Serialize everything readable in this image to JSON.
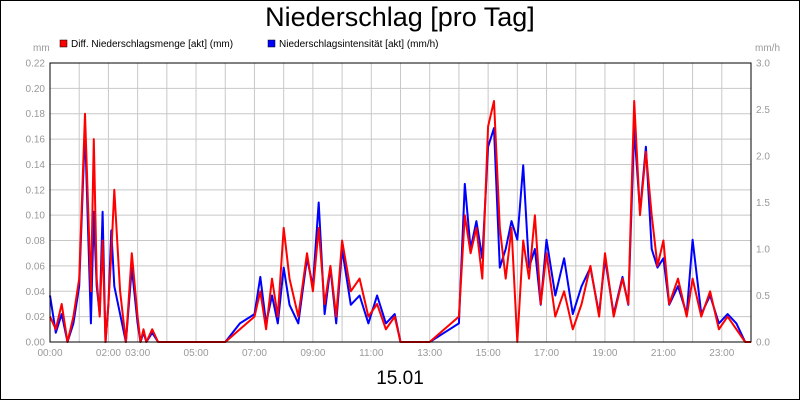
{
  "chart_data": {
    "type": "line",
    "title": "Niederschlag [pro Tag]",
    "xlabel": "15.01",
    "y_left_unit": "mm",
    "y_right_unit": "mm/h",
    "ylim_left": [
      0,
      0.22
    ],
    "ylim_right": [
      0,
      3.0
    ],
    "xlim_hours": [
      0,
      24
    ],
    "grid": true,
    "legend_placement": "top-left",
    "x_ticks": [
      "00:00",
      "02:00",
      "03:00",
      "05:00",
      "07:00",
      "09:00",
      "11:00",
      "13:00",
      "15:00",
      "17:00",
      "19:00",
      "21:00",
      "23:00"
    ],
    "x_tick_hours": [
      0,
      2,
      3,
      5,
      7,
      9,
      11,
      13,
      15,
      17,
      19,
      21,
      23
    ],
    "y_left_ticks": [
      "0.00",
      "0.02",
      "0.04",
      "0.06",
      "0.08",
      "0.10",
      "0.12",
      "0.14",
      "0.16",
      "0.18",
      "0.20",
      "0.22"
    ],
    "y_right_ticks": [
      "0.0",
      "0.5",
      "1.0",
      "1.5",
      "2.0",
      "2.5",
      "3.0"
    ],
    "series": [
      {
        "name": "Diff. Niederschlagsmenge [akt] (mm)",
        "color": "#ff0000",
        "axis": "left",
        "x": [
          0,
          0.2,
          0.4,
          0.6,
          0.8,
          1.0,
          1.2,
          1.4,
          1.5,
          1.6,
          1.7,
          1.8,
          1.9,
          2.0,
          2.1,
          2.2,
          2.4,
          2.6,
          2.8,
          3.0,
          3.1,
          3.2,
          3.3,
          3.5,
          3.7,
          4.0,
          5.0,
          6.0,
          6.5,
          7.0,
          7.2,
          7.4,
          7.6,
          7.8,
          8.0,
          8.2,
          8.5,
          8.8,
          9.0,
          9.2,
          9.4,
          9.6,
          9.8,
          10.0,
          10.3,
          10.6,
          10.9,
          11.2,
          11.5,
          11.8,
          12.0,
          12.5,
          13.0,
          13.5,
          14.0,
          14.2,
          14.4,
          14.6,
          14.8,
          15.0,
          15.2,
          15.4,
          15.6,
          15.8,
          16.0,
          16.2,
          16.4,
          16.6,
          16.8,
          17.0,
          17.3,
          17.6,
          17.9,
          18.2,
          18.5,
          18.8,
          19.0,
          19.3,
          19.6,
          19.8,
          20.0,
          20.2,
          20.4,
          20.6,
          20.8,
          21.0,
          21.2,
          21.5,
          21.8,
          22.0,
          22.3,
          22.6,
          22.9,
          23.2,
          23.5,
          23.8,
          24.0
        ],
        "values": [
          0.02,
          0.01,
          0.03,
          0.0,
          0.02,
          0.05,
          0.18,
          0.04,
          0.16,
          0.05,
          0.02,
          0.08,
          0.0,
          0.03,
          0.07,
          0.12,
          0.04,
          0.0,
          0.07,
          0.02,
          0.0,
          0.01,
          0.0,
          0.01,
          0.0,
          0.0,
          0.0,
          0.0,
          0.01,
          0.02,
          0.04,
          0.01,
          0.05,
          0.02,
          0.09,
          0.05,
          0.02,
          0.07,
          0.04,
          0.09,
          0.03,
          0.06,
          0.02,
          0.08,
          0.04,
          0.05,
          0.02,
          0.03,
          0.01,
          0.02,
          0.0,
          0.0,
          0.0,
          0.01,
          0.02,
          0.1,
          0.07,
          0.09,
          0.05,
          0.17,
          0.19,
          0.09,
          0.05,
          0.09,
          0.0,
          0.08,
          0.05,
          0.1,
          0.03,
          0.07,
          0.02,
          0.04,
          0.01,
          0.03,
          0.06,
          0.02,
          0.07,
          0.02,
          0.05,
          0.03,
          0.19,
          0.1,
          0.15,
          0.1,
          0.06,
          0.08,
          0.03,
          0.05,
          0.02,
          0.05,
          0.02,
          0.04,
          0.01,
          0.02,
          0.01,
          0.0,
          0.0
        ]
      },
      {
        "name": "Niederschlagsintensität [akt] (mm/h)",
        "color": "#0000ff",
        "axis": "right",
        "x": [
          0,
          0.2,
          0.4,
          0.6,
          0.8,
          1.0,
          1.2,
          1.4,
          1.5,
          1.6,
          1.7,
          1.8,
          1.9,
          2.0,
          2.1,
          2.2,
          2.4,
          2.6,
          2.8,
          3.0,
          3.1,
          3.2,
          3.3,
          3.5,
          3.7,
          4.0,
          5.0,
          6.0,
          6.5,
          7.0,
          7.2,
          7.4,
          7.6,
          7.8,
          8.0,
          8.2,
          8.5,
          8.8,
          9.0,
          9.2,
          9.4,
          9.6,
          9.8,
          10.0,
          10.3,
          10.6,
          10.9,
          11.2,
          11.5,
          11.8,
          12.0,
          12.5,
          13.0,
          13.5,
          14.0,
          14.2,
          14.4,
          14.6,
          14.8,
          15.0,
          15.2,
          15.4,
          15.6,
          15.8,
          16.0,
          16.2,
          16.4,
          16.6,
          16.8,
          17.0,
          17.3,
          17.6,
          17.9,
          18.2,
          18.5,
          18.8,
          19.0,
          19.3,
          19.6,
          19.8,
          20.0,
          20.2,
          20.4,
          20.6,
          20.8,
          21.0,
          21.2,
          21.5,
          21.8,
          22.0,
          22.3,
          22.6,
          22.9,
          23.2,
          23.5,
          23.8,
          24.0
        ],
        "values": [
          0.5,
          0.1,
          0.3,
          0.0,
          0.2,
          0.6,
          2.3,
          0.2,
          1.4,
          0.6,
          0.3,
          1.4,
          0.0,
          0.4,
          1.2,
          0.6,
          0.3,
          0.0,
          0.8,
          0.2,
          0.0,
          0.1,
          0.0,
          0.1,
          0.0,
          0.0,
          0.0,
          0.0,
          0.2,
          0.3,
          0.7,
          0.2,
          0.5,
          0.2,
          0.8,
          0.4,
          0.2,
          0.9,
          0.6,
          1.5,
          0.3,
          0.8,
          0.2,
          1.0,
          0.4,
          0.5,
          0.2,
          0.5,
          0.2,
          0.3,
          0.0,
          0.0,
          0.0,
          0.1,
          0.2,
          1.7,
          1.0,
          1.3,
          0.9,
          2.1,
          2.3,
          0.8,
          1.0,
          1.3,
          1.1,
          1.9,
          0.8,
          1.0,
          0.4,
          1.1,
          0.5,
          0.9,
          0.3,
          0.6,
          0.8,
          0.3,
          0.9,
          0.3,
          0.7,
          0.4,
          2.3,
          1.4,
          2.1,
          1.0,
          0.8,
          0.9,
          0.4,
          0.6,
          0.3,
          1.1,
          0.3,
          0.5,
          0.2,
          0.3,
          0.2,
          0.0,
          0.0
        ]
      }
    ]
  }
}
